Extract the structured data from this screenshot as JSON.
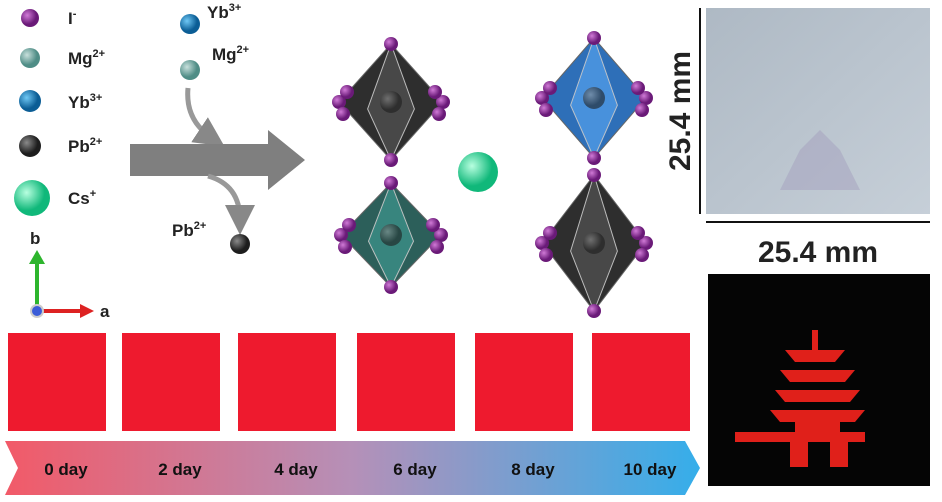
{
  "legend": [
    {
      "ion": "I",
      "sup": "-"
    },
    {
      "ion": "Mg",
      "sup": "2+"
    },
    {
      "ion": "Yb",
      "sup": "3+"
    },
    {
      "ion": "Pb",
      "sup": "2+"
    },
    {
      "ion": "Cs",
      "sup": "+"
    }
  ],
  "reaction": {
    "added": [
      {
        "ion": "Yb",
        "sup": "3+"
      },
      {
        "ion": "Mg",
        "sup": "2+"
      }
    ],
    "removed": {
      "ion": "Pb",
      "sup": "2+"
    }
  },
  "axes": {
    "b": "b",
    "a": "a"
  },
  "dimensions": {
    "height": "25.4 mm",
    "width": "25.4 mm"
  },
  "timeline": [
    "0 day",
    "2 day",
    "4 day",
    "6 day",
    "8 day",
    "10 day"
  ]
}
